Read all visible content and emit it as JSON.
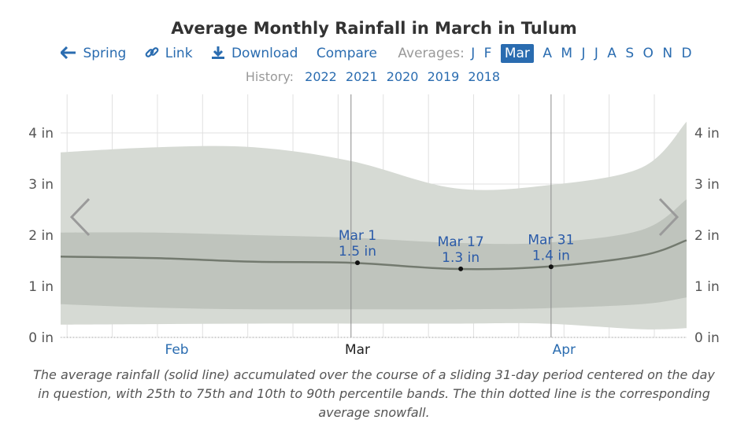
{
  "header": {
    "title": "Average Monthly Rainfall in March in Tulum",
    "nav": {
      "spring": "Spring",
      "link": "Link",
      "download": "Download",
      "compare": "Compare",
      "averages_label": "Averages:",
      "months": [
        "J",
        "F",
        "Mar",
        "A",
        "M",
        "J",
        "J",
        "A",
        "S",
        "O",
        "N",
        "D"
      ],
      "active_month": "Mar"
    },
    "history": {
      "label": "History:",
      "years": [
        "2022",
        "2021",
        "2020",
        "2019",
        "2018"
      ]
    }
  },
  "icons": {
    "spring": "arrow-left-icon",
    "link": "link-icon",
    "download": "download-icon",
    "prev": "chevron-left-icon",
    "next": "chevron-right-icon"
  },
  "colors": {
    "band_10_90": "#d6dad4",
    "band_25_75": "#bfc4bd",
    "mean_line": "#737a6f",
    "link": "#2a6cb0",
    "month_label_current": "#222222"
  },
  "chart_data": {
    "type": "area",
    "title": "Average Monthly Rainfall in March in Tulum",
    "y_unit": "in",
    "ylim": [
      0,
      4.2
    ],
    "yticks": [
      0,
      1,
      2,
      3,
      4
    ],
    "ytick_labels": [
      "0 in",
      "1 in",
      "2 in",
      "3 in",
      "4 in"
    ],
    "x_labels": [
      "Feb",
      "Mar",
      "Apr"
    ],
    "x_label_days": [
      -27,
      1,
      33
    ],
    "x_range_days": [
      -45,
      52
    ],
    "day_labels": [
      "Mar 1",
      "Mar 17",
      "Mar 31"
    ],
    "x_days": [
      -45,
      -30,
      -15,
      0,
      16,
      30,
      45,
      52
    ],
    "mean": [
      1.58,
      1.55,
      1.48,
      1.46,
      1.34,
      1.38,
      1.6,
      1.9
    ],
    "p25": [
      0.65,
      0.58,
      0.55,
      0.55,
      0.55,
      0.57,
      0.65,
      0.78
    ],
    "p75": [
      2.05,
      2.05,
      2.0,
      1.95,
      1.85,
      1.85,
      2.1,
      2.7
    ],
    "p10": [
      0.25,
      0.26,
      0.27,
      0.27,
      0.27,
      0.27,
      0.16,
      0.18
    ],
    "p90": [
      3.62,
      3.72,
      3.72,
      3.45,
      2.92,
      2.97,
      3.32,
      4.22
    ],
    "snowfall": [
      0,
      0,
      0,
      0,
      0,
      0,
      0,
      0
    ],
    "highlights": [
      {
        "label": "Mar 1",
        "value": "1.5 in",
        "day": 1,
        "y": 1.46
      },
      {
        "label": "Mar 17",
        "value": "1.3 in",
        "day": 17,
        "y": 1.34
      },
      {
        "label": "Mar 31",
        "value": "1.4 in",
        "day": 31,
        "y": 1.38
      }
    ]
  },
  "caption": "The average rainfall (solid line) accumulated over the course of a sliding 31-day period centered on the day in question, with 25th to 75th and 10th to 90th percentile bands. The thin dotted line is the corresponding average snowfall."
}
